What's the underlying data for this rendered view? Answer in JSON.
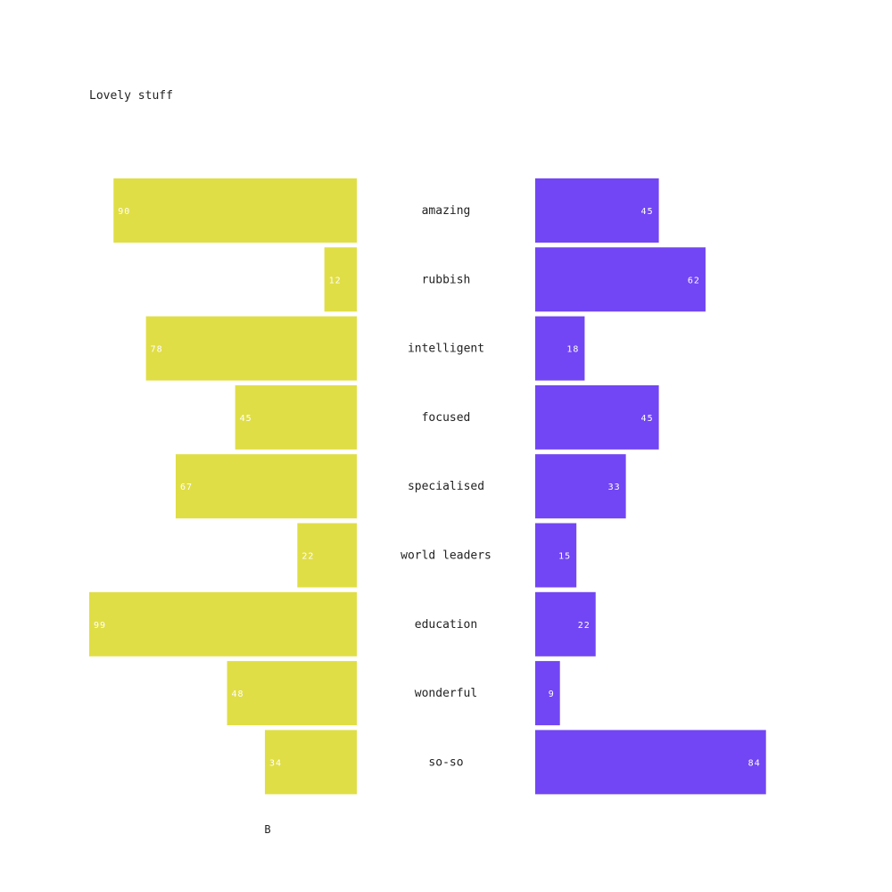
{
  "chart_data": {
    "type": "bar",
    "orientation": "horizontal-diverging",
    "title": "Lovely stuff",
    "categories": [
      "amazing",
      "rubbish",
      "intelligent",
      "focused",
      "specialised",
      "world leaders",
      "education",
      "wonderful",
      "so-so"
    ],
    "series": [
      {
        "values": [
          90,
          12,
          78,
          45,
          67,
          22,
          99,
          48,
          34
        ],
        "color": "#e0de46",
        "side": "left"
      },
      {
        "values": [
          45,
          62,
          18,
          45,
          33,
          15,
          22,
          9,
          84
        ],
        "color": "#7246f4",
        "side": "right"
      }
    ],
    "xaxis_label": "B",
    "grid": false,
    "legend": "none"
  }
}
